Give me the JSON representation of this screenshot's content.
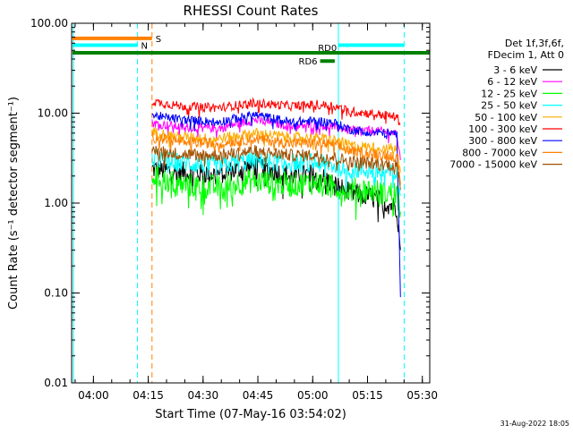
{
  "chart_data": {
    "type": "line",
    "title": "RHESSI Count Rates",
    "xlabel": "Start Time (07-May-16 03:54:02)",
    "ylabel": "Count Rate (s⁻¹ detector segment⁻¹)",
    "yscale": "log",
    "ylim": [
      0.01,
      100
    ],
    "xlim_minutes_since_start": [
      0,
      98
    ],
    "x_ticks": [
      {
        "label": "04:00",
        "t": 5.97
      },
      {
        "label": "04:15",
        "t": 20.97
      },
      {
        "label": "04:30",
        "t": 35.97
      },
      {
        "label": "04:45",
        "t": 50.97
      },
      {
        "label": "05:00",
        "t": 65.97
      },
      {
        "label": "05:15",
        "t": 80.97
      },
      {
        "label": "05:30",
        "t": 95.97
      }
    ],
    "y_ticks": [
      {
        "label": "0.01",
        "v": 0.01
      },
      {
        "label": "0.10",
        "v": 0.1
      },
      {
        "label": "1.00",
        "v": 1
      },
      {
        "label": "10.00",
        "v": 10
      },
      {
        "label": "100.00",
        "v": 100
      }
    ],
    "grid": false,
    "legend_position": "right",
    "legend_header": [
      "Det 1f,3f,6f,",
      "FDecim 1, Att 0"
    ],
    "footer_date": "31-Aug-2022 18:05",
    "series": [
      {
        "name": "3 - 6 keV",
        "color": "#000000",
        "t": [
          22,
          30,
          40,
          50,
          60,
          67,
          72,
          76,
          81,
          86,
          89,
          90
        ],
        "values": [
          2.4,
          2.2,
          2.1,
          2.6,
          2.0,
          2.1,
          1.6,
          1.3,
          1.2,
          1.0,
          0.9,
          0.3
        ]
      },
      {
        "name": "6 - 12 keV",
        "color": "#ff00ff",
        "t": [
          22,
          30,
          40,
          50,
          60,
          67,
          72,
          76,
          81,
          86,
          89,
          90
        ],
        "values": [
          7.8,
          7.0,
          6.8,
          8.4,
          7.2,
          7.4,
          7.0,
          6.5,
          6.4,
          6.2,
          6.0,
          3.0
        ]
      },
      {
        "name": "12 - 25 keV",
        "color": "#00ff00",
        "t": [
          22,
          30,
          40,
          50,
          60,
          67,
          72,
          76,
          81,
          86,
          89,
          90
        ],
        "values": [
          2.0,
          1.6,
          1.5,
          1.8,
          1.6,
          1.7,
          1.5,
          1.4,
          1.4,
          1.3,
          1.3,
          0.8
        ]
      },
      {
        "name": "25 - 50 keV",
        "color": "#00ffff",
        "t": [
          22,
          30,
          40,
          50,
          60,
          67,
          72,
          76,
          81,
          86,
          89,
          90
        ],
        "values": [
          3.2,
          2.8,
          2.6,
          3.0,
          2.8,
          2.8,
          2.6,
          2.4,
          2.3,
          2.2,
          2.1,
          1.2
        ]
      },
      {
        "name": "50 - 100 keV",
        "color": "#ffaa00",
        "t": [
          22,
          30,
          40,
          50,
          60,
          67,
          72,
          76,
          81,
          86,
          89,
          90
        ],
        "values": [
          6.2,
          5.4,
          5.2,
          6.0,
          5.4,
          5.3,
          5.0,
          4.4,
          4.2,
          4.1,
          4.0,
          2.2
        ]
      },
      {
        "name": "100 - 300 keV",
        "color": "#ff0000",
        "t": [
          22,
          30,
          40,
          50,
          60,
          67,
          72,
          76,
          81,
          86,
          89,
          90
        ],
        "values": [
          13.5,
          12.0,
          11.5,
          13.0,
          12.0,
          12.5,
          12.0,
          10.5,
          10.0,
          9.5,
          9.0,
          7.5
        ]
      },
      {
        "name": "300 - 800 keV",
        "color": "#0000ff",
        "t": [
          22,
          30,
          40,
          50,
          60,
          67,
          72,
          76,
          81,
          86,
          89,
          90
        ],
        "values": [
          9.5,
          8.5,
          8.0,
          9.6,
          8.0,
          8.2,
          7.8,
          6.6,
          6.2,
          6.0,
          5.8,
          0.09
        ]
      },
      {
        "name": "800 - 7000 keV",
        "color": "#ff8000",
        "t": [
          22,
          30,
          40,
          50,
          60,
          67,
          72,
          76,
          81,
          86,
          89,
          90
        ],
        "values": [
          5.4,
          4.8,
          4.6,
          5.2,
          4.6,
          4.7,
          4.4,
          3.8,
          3.6,
          3.4,
          3.3,
          1.6
        ]
      },
      {
        "name": "7000 - 15000 keV",
        "color": "#a05000",
        "t": [
          22,
          30,
          40,
          50,
          60,
          67,
          72,
          76,
          81,
          86,
          89,
          90
        ],
        "values": [
          3.9,
          3.5,
          3.4,
          3.8,
          3.4,
          3.4,
          3.2,
          2.9,
          2.8,
          2.7,
          2.6,
          1.4
        ]
      }
    ],
    "flag_bars": [
      {
        "label": "S",
        "color": "#ff8000",
        "t_start": 0,
        "t_end": 22,
        "value": 68
      },
      {
        "label": "N",
        "color": "#00ffff",
        "t_start": 0,
        "t_end": 18,
        "value": 57
      },
      {
        "label": "",
        "color": "#00ffff",
        "t_start": 73,
        "t_end": 91,
        "value": 57
      },
      {
        "label": "RD0",
        "color": "#008000",
        "t_start": 0,
        "t_end": 98,
        "value": 47
      },
      {
        "label": "RD6",
        "color": "#008000",
        "t_start": 68,
        "t_end": 72,
        "value": 38
      }
    ],
    "vertical_markers": [
      {
        "t": 0.5,
        "color": "#00ffff",
        "style": "solid"
      },
      {
        "t": 18,
        "color": "#00ffff",
        "style": "dashed"
      },
      {
        "t": 22,
        "color": "#ff8000",
        "style": "dashed"
      },
      {
        "t": 73,
        "color": "#00ffff",
        "style": "solid"
      },
      {
        "t": 91,
        "color": "#00ffff",
        "style": "dashed"
      }
    ]
  }
}
